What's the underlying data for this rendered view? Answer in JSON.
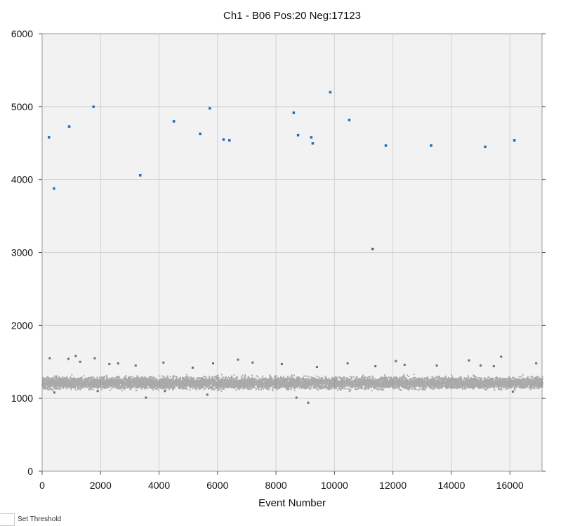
{
  "chart_data": {
    "type": "scatter",
    "title": "Ch1 - B06 Pos:20 Neg:17123",
    "xlabel": "Event Number",
    "ylabel": "",
    "xlim": [
      0,
      17100
    ],
    "ylim": [
      0,
      6000
    ],
    "xticks": [
      0,
      2000,
      4000,
      6000,
      8000,
      10000,
      12000,
      14000,
      16000
    ],
    "yticks": [
      0,
      1000,
      2000,
      3000,
      4000,
      5000,
      6000
    ],
    "grid": true,
    "background": "#f2f2f2",
    "series": [
      {
        "name": "",
        "color": "#1f6fbf",
        "x": [
          230,
          400,
          920,
          1750,
          3350,
          4500,
          5400,
          5730,
          6200,
          6400,
          8600,
          8750,
          9200,
          9250,
          9850,
          10500,
          11750,
          13300,
          15150,
          16150
        ],
        "y": [
          4580,
          3880,
          4730,
          5000,
          4060,
          4800,
          4630,
          4980,
          4550,
          4540,
          4920,
          4610,
          4580,
          4500,
          5200,
          4820,
          4470,
          4470,
          4450,
          4540
        ]
      },
      {
        "name": "",
        "color": "#666666",
        "x": [
          11300
        ],
        "y": [
          3050
        ]
      },
      {
        "name": "",
        "color": "#6e6e6e",
        "x_range": [
          0,
          17100
        ],
        "y_center": 1220,
        "y_spread": 70,
        "count": 17123,
        "outlier_x": [
          260,
          420,
          900,
          1150,
          1300,
          1800,
          1900,
          2300,
          2600,
          3200,
          3550,
          4150,
          4200,
          5150,
          5650,
          5850,
          6700,
          7200,
          8200,
          8700,
          9100,
          9400,
          10450,
          11400,
          12100,
          12400,
          13500,
          14600,
          15000,
          15450,
          15700,
          16100,
          16900
        ],
        "outlier_y": [
          1550,
          1080,
          1540,
          1580,
          1500,
          1550,
          1100,
          1470,
          1480,
          1450,
          1010,
          1490,
          1100,
          1420,
          1050,
          1480,
          1530,
          1490,
          1470,
          1010,
          940,
          1430,
          1480,
          1440,
          1510,
          1460,
          1450,
          1520,
          1450,
          1440,
          1570,
          1090,
          1480
        ]
      }
    ]
  },
  "controls": {
    "threshold_label": "Set Threshold"
  }
}
